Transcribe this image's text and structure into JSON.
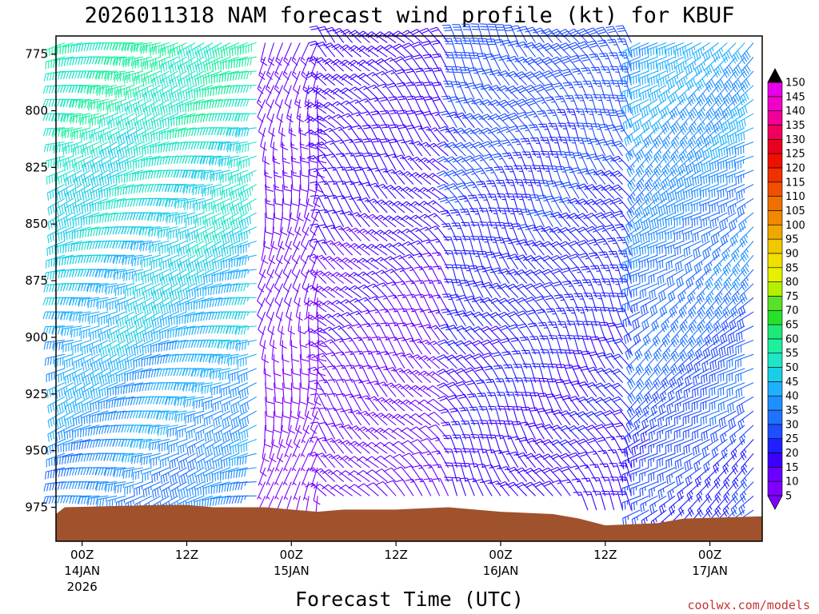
{
  "chart_data": {
    "type": "wind-barb profile",
    "title": "2026011318 NAM forecast wind profile (kt) for KBUF",
    "xlabel": "Forecast Time (UTC)",
    "credit": "coolwx.com/models",
    "y_axis": {
      "inverted": true,
      "range": [
        990,
        767
      ],
      "ticks": [
        775,
        800,
        825,
        850,
        875,
        900,
        925,
        950,
        975
      ]
    },
    "x_axis": {
      "range": [
        "2026-01-13T21:00Z",
        "2026-01-17T06:00Z"
      ],
      "ticks": [
        {
          "time": "2026-01-14T00:00Z",
          "label": "00Z",
          "day": "14JAN",
          "year": "2026"
        },
        {
          "time": "2026-01-14T12:00Z",
          "label": "12Z"
        },
        {
          "time": "2026-01-15T00:00Z",
          "label": "00Z",
          "day": "15JAN"
        },
        {
          "time": "2026-01-15T12:00Z",
          "label": "12Z"
        },
        {
          "time": "2026-01-16T00:00Z",
          "label": "00Z",
          "day": "16JAN"
        },
        {
          "time": "2026-01-16T12:00Z",
          "label": "12Z"
        },
        {
          "time": "2026-01-17T00:00Z",
          "label": "00Z",
          "day": "17JAN"
        }
      ]
    },
    "colorbar": {
      "levels": [
        5,
        10,
        15,
        20,
        25,
        30,
        35,
        40,
        45,
        50,
        55,
        60,
        65,
        70,
        75,
        80,
        85,
        90,
        95,
        100,
        105,
        110,
        115,
        120,
        125,
        130,
        135,
        140,
        145,
        150
      ],
      "colors": [
        "#7f00ff",
        "#6a00ff",
        "#3c00ff",
        "#1f1fff",
        "#1f4dff",
        "#1f72ff",
        "#1f8fff",
        "#1fb0ff",
        "#18cfe6",
        "#1fe6c8",
        "#1ff0a0",
        "#1fe878",
        "#28e028",
        "#5ae028",
        "#b4f000",
        "#e6f000",
        "#f0e000",
        "#f0c800",
        "#f0a800",
        "#f08800",
        "#f07000",
        "#f05000",
        "#f03000",
        "#f01000",
        "#e8001e",
        "#f0005a",
        "#f00096",
        "#f000c8",
        "#e600e6"
      ]
    },
    "ground": {
      "color": "#a0522d",
      "pressure_by_time": [
        {
          "time": "2026-01-13T21:00Z",
          "p": 978
        },
        {
          "time": "2026-01-13T22:00Z",
          "p": 975
        },
        {
          "time": "2026-01-14T09:00Z",
          "p": 974
        },
        {
          "time": "2026-01-14T12:00Z",
          "p": 974
        },
        {
          "time": "2026-01-14T15:00Z",
          "p": 975
        },
        {
          "time": "2026-01-14T21:00Z",
          "p": 975
        },
        {
          "time": "2026-01-15T00:00Z",
          "p": 976
        },
        {
          "time": "2026-01-15T03:00Z",
          "p": 977
        },
        {
          "time": "2026-01-15T06:00Z",
          "p": 976
        },
        {
          "time": "2026-01-15T12:00Z",
          "p": 976
        },
        {
          "time": "2026-01-15T18:00Z",
          "p": 975
        },
        {
          "time": "2026-01-16T00:00Z",
          "p": 977
        },
        {
          "time": "2026-01-16T06:00Z",
          "p": 978
        },
        {
          "time": "2026-01-16T09:00Z",
          "p": 980
        },
        {
          "time": "2026-01-16T12:00Z",
          "p": 983
        },
        {
          "time": "2026-01-16T18:00Z",
          "p": 982
        },
        {
          "time": "2026-01-16T21:00Z",
          "p": 980
        },
        {
          "time": "2026-01-17T06:00Z",
          "p": 979
        }
      ]
    },
    "barb_grid": {
      "time_step_hours": 1,
      "pressure_step_hpa": 6.25,
      "note": "Wind field (speed kt, direction from) estimated from the plotted barbs; barbs drawn for each hourly column above ground."
    },
    "wind_regimes": [
      {
        "from": "2026-01-13T21:00Z",
        "to": "2026-01-14T20:00Z",
        "direction_deg": 255,
        "speed_kt": [
          30,
          60
        ]
      },
      {
        "from": "2026-01-14T21:00Z",
        "to": "2026-01-15T03:00Z",
        "direction_deg": 190,
        "speed_kt": [
          5,
          15
        ]
      },
      {
        "from": "2026-01-15T03:00Z",
        "to": "2026-01-15T18:00Z",
        "direction_deg": 320,
        "speed_kt": [
          10,
          20
        ]
      },
      {
        "from": "2026-01-15T18:00Z",
        "to": "2026-01-16T15:00Z",
        "direction_deg": 330,
        "speed_kt": [
          15,
          30
        ]
      },
      {
        "from": "2026-01-16T15:00Z",
        "to": "2026-01-17T06:00Z",
        "direction_deg": 235,
        "speed_kt": [
          20,
          45
        ]
      }
    ]
  }
}
